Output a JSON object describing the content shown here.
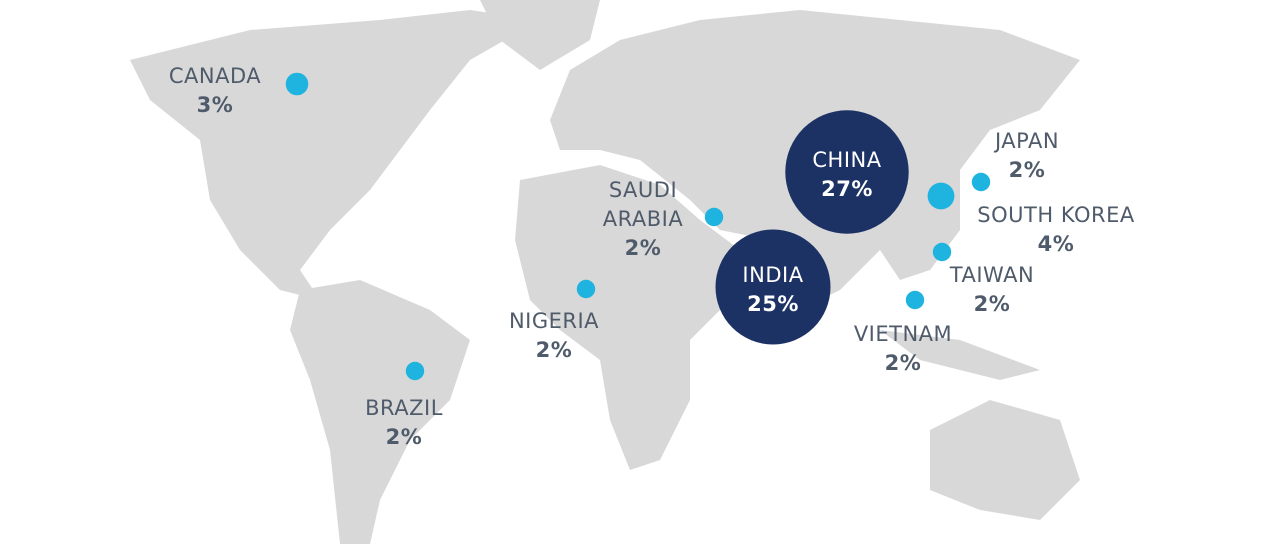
{
  "map": {
    "points": [
      {
        "name": "CANADA",
        "value": 3,
        "value_label": "3%",
        "color": "#1fb3df"
      },
      {
        "name": "CHINA",
        "value": 27,
        "value_label": "27%",
        "color": "#1d3264"
      },
      {
        "name": "INDIA",
        "value": 25,
        "value_label": "25%",
        "color": "#1d3264"
      },
      {
        "name": "JAPAN",
        "value": 2,
        "value_label": "2%",
        "color": "#1fb3df"
      },
      {
        "name": "SOUTH KOREA",
        "value": 4,
        "value_label": "4%",
        "color": "#1fb3df"
      },
      {
        "name": "SAUDI ARABIA",
        "value": 2,
        "value_label": "2%",
        "color": "#1fb3df"
      },
      {
        "name": "TAIWAN",
        "value": 2,
        "value_label": "2%",
        "color": "#1fb3df"
      },
      {
        "name": "NIGERIA",
        "value": 2,
        "value_label": "2%",
        "color": "#1fb3df"
      },
      {
        "name": "VIETNAM",
        "value": 2,
        "value_label": "2%",
        "color": "#1fb3df"
      },
      {
        "name": "BRAZIL",
        "value": 2,
        "value_label": "2%",
        "color": "#1fb3df"
      }
    ]
  }
}
